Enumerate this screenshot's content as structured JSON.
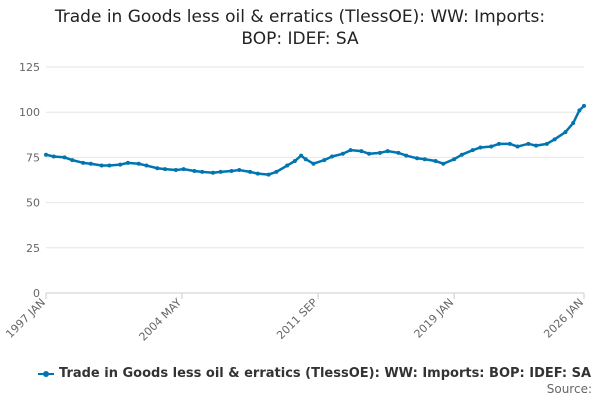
{
  "title_line1": "Trade in Goods less oil & erratics (TlessOE): WW: Imports:",
  "title_line2": "BOP: IDEF: SA",
  "source_label": "Source:",
  "colors": {
    "series": "#0075b0",
    "grid": "#e6e6e6",
    "axis": "#cccccc",
    "text": "#666666"
  },
  "chart_data": {
    "type": "line",
    "title": "Trade in Goods less oil & erratics (TlessOE): WW: Imports: BOP: IDEF: SA",
    "xlabel": "",
    "ylabel": "",
    "ylim": [
      0,
      125
    ],
    "y_ticks": [
      0,
      25,
      50,
      75,
      100,
      125
    ],
    "x_ticks": [
      {
        "label": "1997 JAN",
        "date": "1997-01"
      },
      {
        "label": "2004 MAY",
        "date": "2004-05"
      },
      {
        "label": "2011 SEP",
        "date": "2011-09"
      },
      {
        "label": "2019 JAN",
        "date": "2019-01"
      },
      {
        "label": "2026 JAN",
        "date": "2026-01"
      }
    ],
    "x_range": [
      "1997-01",
      "2026-01"
    ],
    "grid": true,
    "legend_position": "bottom",
    "series": [
      {
        "name": "Trade in Goods less oil & erratics (TlessOE): WW: Imports: BOP: IDEF: SA",
        "points": [
          [
            "1997-01",
            76.5
          ],
          [
            "1997-06",
            75.5
          ],
          [
            "1998-01",
            75.0
          ],
          [
            "1998-06",
            73.5
          ],
          [
            "1999-01",
            72.0
          ],
          [
            "1999-06",
            71.5
          ],
          [
            "2000-01",
            70.5
          ],
          [
            "2000-06",
            70.5
          ],
          [
            "2001-01",
            71.0
          ],
          [
            "2001-06",
            72.0
          ],
          [
            "2002-01",
            71.5
          ],
          [
            "2002-06",
            70.5
          ],
          [
            "2003-01",
            69.0
          ],
          [
            "2003-06",
            68.5
          ],
          [
            "2004-01",
            68.0
          ],
          [
            "2004-06",
            68.5
          ],
          [
            "2005-01",
            67.5
          ],
          [
            "2005-06",
            67.0
          ],
          [
            "2006-01",
            66.5
          ],
          [
            "2006-06",
            67.0
          ],
          [
            "2007-01",
            67.5
          ],
          [
            "2007-06",
            68.0
          ],
          [
            "2008-01",
            67.0
          ],
          [
            "2008-06",
            66.0
          ],
          [
            "2009-01",
            65.5
          ],
          [
            "2009-06",
            67.0
          ],
          [
            "2010-01",
            70.5
          ],
          [
            "2010-06",
            73.0
          ],
          [
            "2010-10",
            76.0
          ],
          [
            "2011-01",
            74.0
          ],
          [
            "2011-06",
            71.5
          ],
          [
            "2012-01",
            73.5
          ],
          [
            "2012-06",
            75.5
          ],
          [
            "2013-01",
            77.0
          ],
          [
            "2013-06",
            79.0
          ],
          [
            "2014-01",
            78.5
          ],
          [
            "2014-06",
            77.0
          ],
          [
            "2015-01",
            77.5
          ],
          [
            "2015-06",
            78.5
          ],
          [
            "2016-01",
            77.5
          ],
          [
            "2016-06",
            76.0
          ],
          [
            "2017-01",
            74.5
          ],
          [
            "2017-06",
            74.0
          ],
          [
            "2018-01",
            73.0
          ],
          [
            "2018-06",
            71.5
          ],
          [
            "2019-01",
            74.0
          ],
          [
            "2019-06",
            76.5
          ],
          [
            "2020-01",
            79.0
          ],
          [
            "2020-06",
            80.5
          ],
          [
            "2021-01",
            81.0
          ],
          [
            "2021-06",
            82.5
          ],
          [
            "2022-01",
            82.5
          ],
          [
            "2022-06",
            81.0
          ],
          [
            "2023-01",
            82.5
          ],
          [
            "2023-06",
            81.5
          ],
          [
            "2024-01",
            82.5
          ],
          [
            "2024-06",
            85.0
          ],
          [
            "2025-01",
            89.0
          ],
          [
            "2025-06",
            94.0
          ],
          [
            "2025-10",
            101.0
          ],
          [
            "2026-01",
            103.5
          ]
        ]
      }
    ]
  }
}
